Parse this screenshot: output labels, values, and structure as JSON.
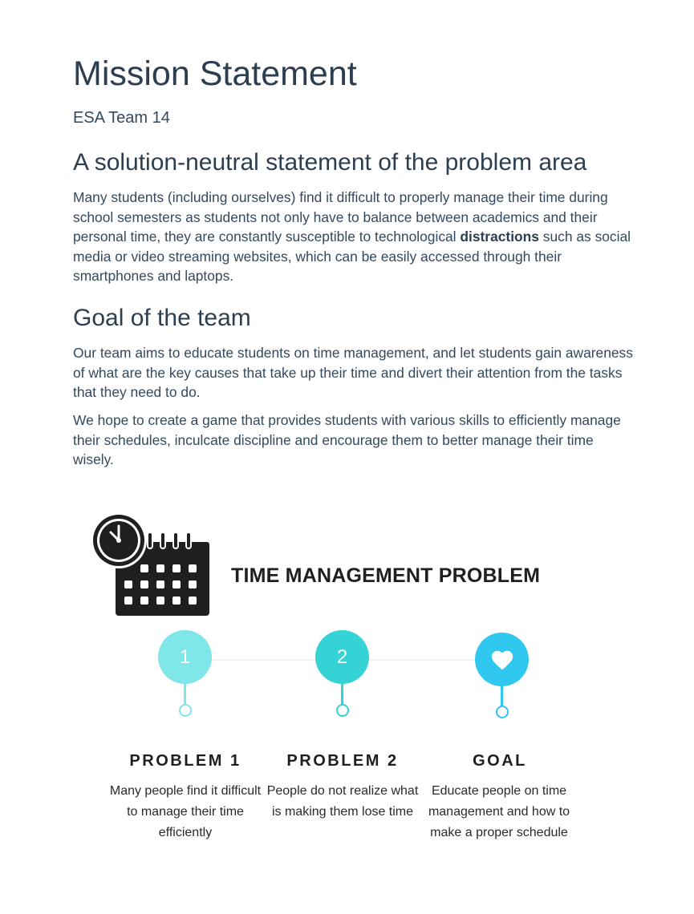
{
  "header": {
    "title": "Mission Statement",
    "subtitle": "ESA Team 14"
  },
  "section1": {
    "heading": "A solution-neutral statement of the problem area",
    "text_before": "Many students (including ourselves) find it difficult to properly manage their time during school semesters as students not only have to balance between academics and their personal time, they are constantly susceptible to technological ",
    "bold": "distractions",
    "text_after": " such as social media or video streaming websites, which can be easily accessed through their smartphones and laptops."
  },
  "section2": {
    "heading": "Goal of the team",
    "paragraph1": "Our team aims to educate students on time management, and let students gain awareness of what are the key causes that take up their time and divert their attention from the tasks that they need to do.",
    "paragraph2": "We hope to create a game that provides students with various skills to efficiently manage their schedules, inculcate discipline and encourage them to better manage their time wisely."
  },
  "infographic": {
    "title": "TIME MANAGEMENT PROBLEM",
    "icon": "clock-calendar-icon",
    "steps": [
      {
        "marker": "1",
        "heading": "PROBLEM 1",
        "text": "Many people find it difficult to manage their time efficiently",
        "color": "#7fe6ea"
      },
      {
        "marker": "2",
        "heading": "PROBLEM 2",
        "text": "People do not realize what is making them lose time",
        "color": "#35d3d5"
      },
      {
        "marker": "heart-icon",
        "heading": "GOAL",
        "text": "Educate people on time management and how to make a proper schedule",
        "color": "#30c8ef"
      }
    ]
  }
}
